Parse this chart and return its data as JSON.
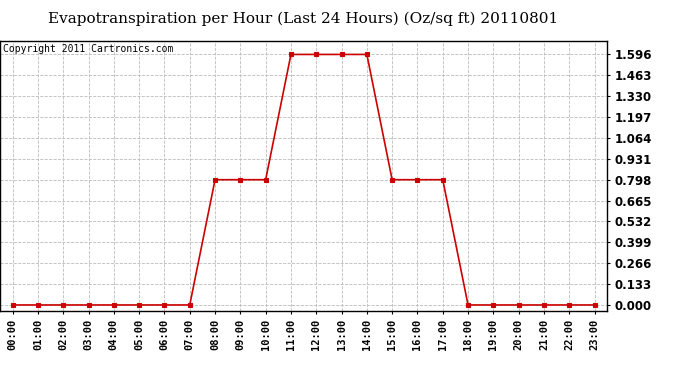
{
  "title": "Evapotranspiration per Hour (Last 24 Hours) (Oz/sq ft) 20110801",
  "copyright": "Copyright 2011 Cartronics.com",
  "hours": [
    0,
    1,
    2,
    3,
    4,
    5,
    6,
    7,
    8,
    9,
    10,
    11,
    12,
    13,
    14,
    15,
    16,
    17,
    18,
    19,
    20,
    21,
    22,
    23
  ],
  "values": [
    0.0,
    0.0,
    0.0,
    0.0,
    0.0,
    0.0,
    0.0,
    0.0,
    0.798,
    0.798,
    0.798,
    1.596,
    1.596,
    1.596,
    1.596,
    0.798,
    0.798,
    0.798,
    0.0,
    0.0,
    0.0,
    0.0,
    0.0,
    0.0
  ],
  "yticks": [
    0.0,
    0.133,
    0.266,
    0.399,
    0.532,
    0.665,
    0.798,
    0.931,
    1.064,
    1.197,
    1.33,
    1.463,
    1.596
  ],
  "ylim": [
    -0.04,
    1.68
  ],
  "xlim": [
    -0.5,
    23.5
  ],
  "line_color": "#cc0000",
  "marker_color": "#cc0000",
  "bg_color": "#ffffff",
  "plot_bg_color": "#ffffff",
  "grid_color": "#bbbbbb",
  "title_fontsize": 11,
  "copyright_fontsize": 7,
  "tick_label_fontsize": 8.5,
  "xtick_label_fontsize": 7.5
}
